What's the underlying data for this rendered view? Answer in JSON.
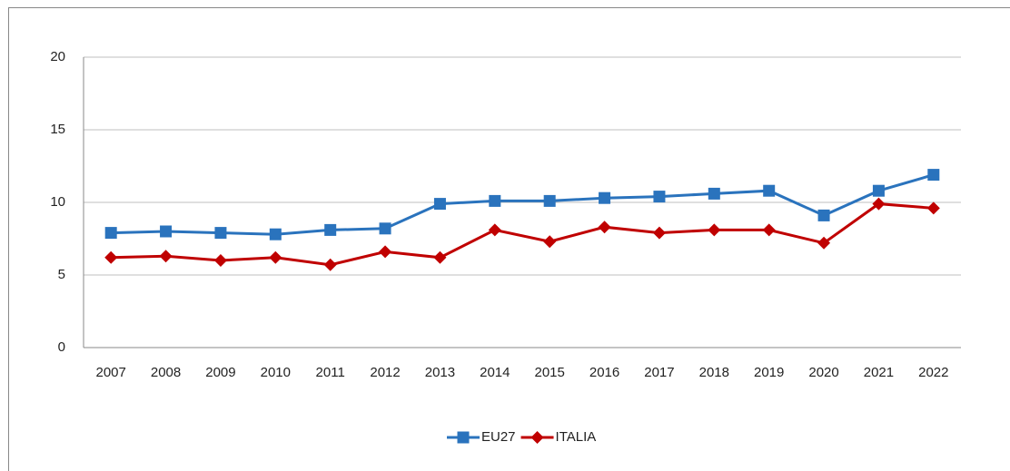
{
  "chart_data": {
    "type": "line",
    "categories": [
      "2007",
      "2008",
      "2009",
      "2010",
      "2011",
      "2012",
      "2013",
      "2014",
      "2015",
      "2016",
      "2017",
      "2018",
      "2019",
      "2020",
      "2021",
      "2022"
    ],
    "series": [
      {
        "name": "EU27",
        "color": "#2a73bd",
        "marker": "square",
        "values": [
          7.9,
          8.0,
          7.9,
          7.8,
          8.1,
          8.2,
          9.9,
          10.1,
          10.1,
          10.3,
          10.4,
          10.6,
          10.8,
          9.1,
          10.8,
          11.9
        ]
      },
      {
        "name": "ITALIA",
        "color": "#c00000",
        "marker": "diamond",
        "values": [
          6.2,
          6.3,
          6.0,
          6.2,
          5.7,
          6.6,
          6.2,
          8.1,
          7.3,
          8.3,
          7.9,
          8.1,
          8.1,
          7.2,
          9.9,
          9.6
        ]
      }
    ],
    "ylim": [
      0,
      20
    ],
    "yticks": [
      0,
      5,
      10,
      15,
      20
    ],
    "grid": true,
    "legend": "bottom"
  }
}
